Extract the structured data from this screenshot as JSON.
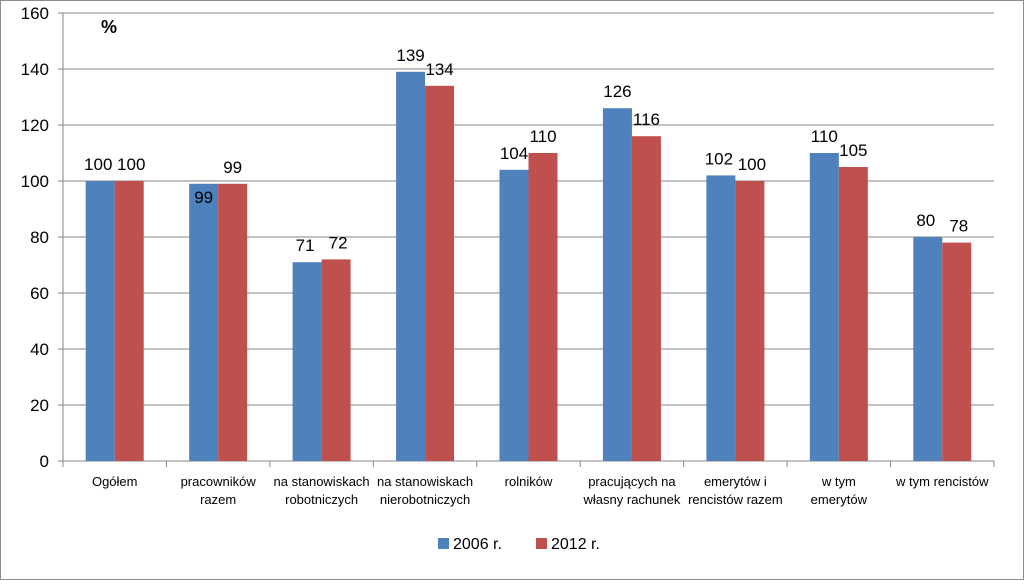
{
  "chart_data": {
    "type": "bar",
    "title": "",
    "unit_label": "%",
    "xlabel": "",
    "ylabel": "",
    "ylim": [
      0,
      160
    ],
    "yticks": [
      0,
      20,
      40,
      60,
      80,
      100,
      120,
      140,
      160
    ],
    "ytick_labels": [
      "0",
      "20",
      "40",
      "60",
      "80",
      "100",
      "120",
      "140",
      "160"
    ],
    "grid": true,
    "legend_position": "bottom",
    "categories": [
      [
        "Ogółem"
      ],
      [
        "pracowników",
        "razem"
      ],
      [
        "na stanowiskach",
        "robotniczych"
      ],
      [
        "na stanowiskach",
        "nierobotniczych"
      ],
      [
        "rolników"
      ],
      [
        "pracujących na",
        "własny rachunek"
      ],
      [
        "emerytów i",
        "rencistów razem"
      ],
      [
        "w tym",
        "emerytów"
      ],
      [
        "w tym rencistów"
      ]
    ],
    "series": [
      {
        "name": "2006 r.",
        "color": "#4f81bd",
        "values": [
          100,
          99,
          71,
          139,
          104,
          126,
          102,
          110,
          80
        ],
        "labels": [
          "100",
          "99",
          "71",
          "139",
          "104",
          "126",
          "102",
          "110",
          "80"
        ]
      },
      {
        "name": "2012 r.",
        "color": "#c0504d",
        "values": [
          100,
          99,
          72,
          134,
          110,
          116,
          100,
          105,
          78
        ],
        "labels": [
          "100",
          "99",
          "72",
          "134",
          "110",
          "116",
          "100",
          "105",
          "78"
        ]
      }
    ]
  }
}
